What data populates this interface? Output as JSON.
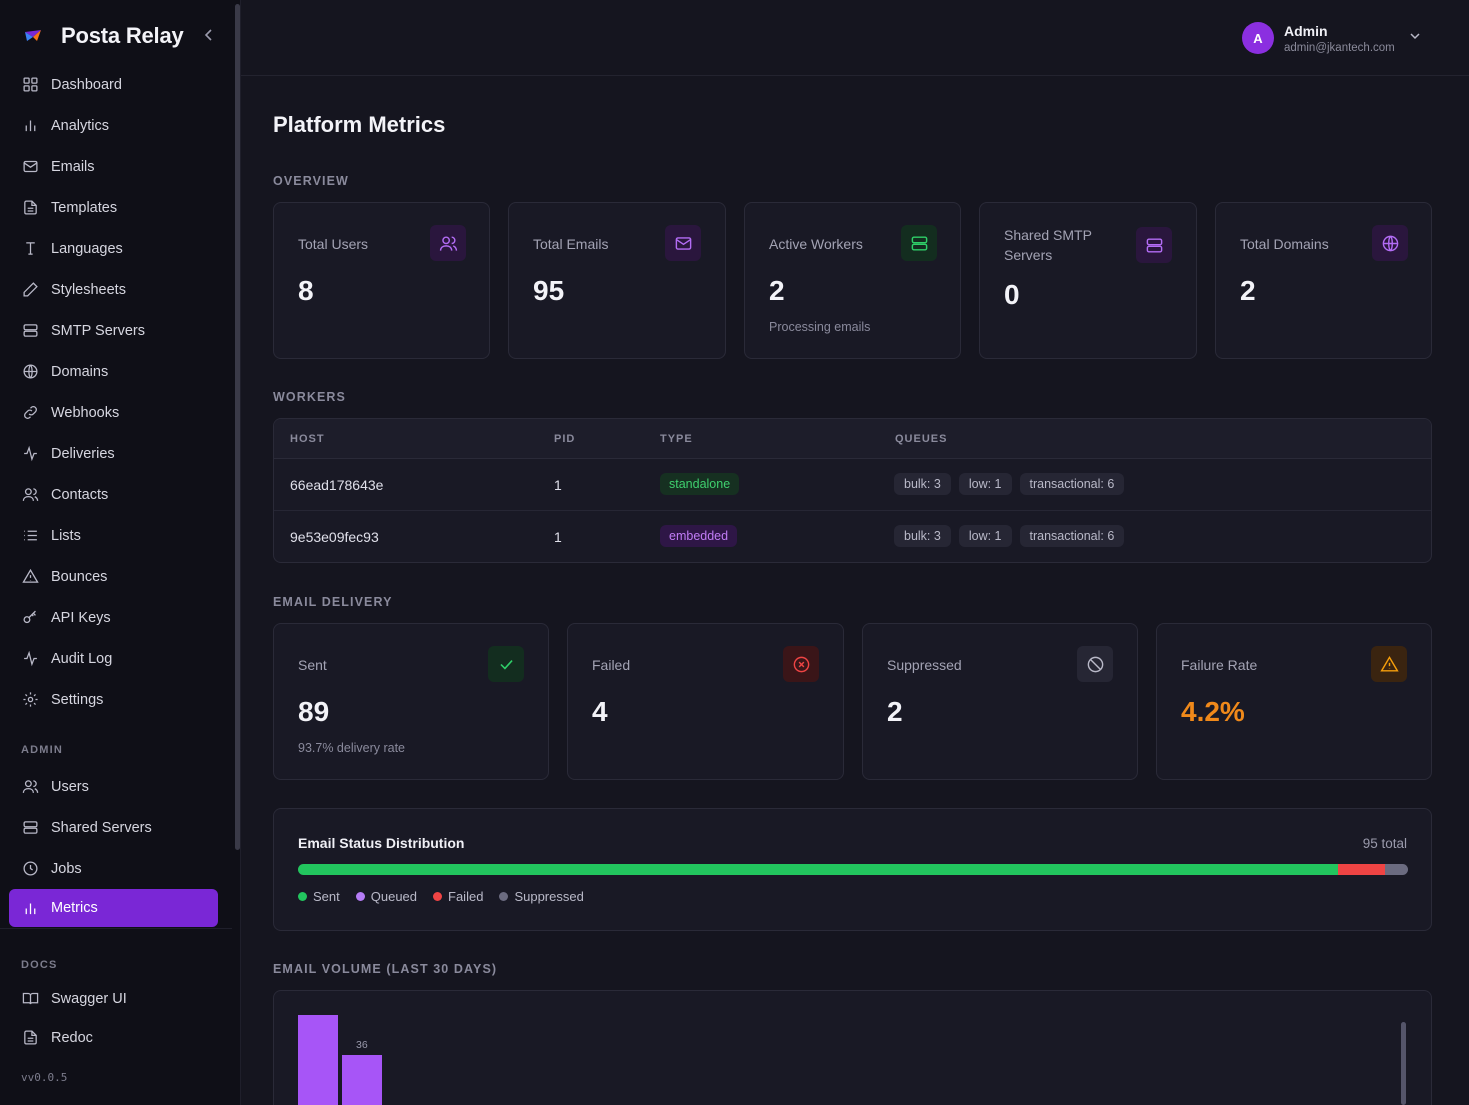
{
  "brand": {
    "title": "Posta Relay"
  },
  "sidebar": {
    "items": [
      {
        "label": "Dashboard",
        "icon": "grid-icon"
      },
      {
        "label": "Analytics",
        "icon": "bar-chart-icon"
      },
      {
        "label": "Emails",
        "icon": "mail-icon"
      },
      {
        "label": "Templates",
        "icon": "file-icon"
      },
      {
        "label": "Languages",
        "icon": "type-icon"
      },
      {
        "label": "Stylesheets",
        "icon": "pencil-icon"
      },
      {
        "label": "SMTP Servers",
        "icon": "server-icon"
      },
      {
        "label": "Domains",
        "icon": "globe-icon"
      },
      {
        "label": "Webhooks",
        "icon": "link-icon"
      },
      {
        "label": "Deliveries",
        "icon": "activity-icon"
      },
      {
        "label": "Contacts",
        "icon": "users-icon"
      },
      {
        "label": "Lists",
        "icon": "list-icon"
      },
      {
        "label": "Bounces",
        "icon": "alert-triangle-icon"
      },
      {
        "label": "API Keys",
        "icon": "key-icon"
      },
      {
        "label": "Audit Log",
        "icon": "activity-icon"
      },
      {
        "label": "Settings",
        "icon": "gear-icon"
      }
    ],
    "admin_label": "ADMIN",
    "admin_items": [
      {
        "label": "Users",
        "icon": "users-icon"
      },
      {
        "label": "Shared Servers",
        "icon": "server-icon"
      },
      {
        "label": "Jobs",
        "icon": "clock-icon"
      },
      {
        "label": "Metrics",
        "icon": "bar-chart-icon",
        "active": true
      }
    ],
    "docs_label": "DOCS",
    "docs_items": [
      {
        "label": "Swagger UI",
        "icon": "book-icon"
      },
      {
        "label": "Redoc",
        "icon": "file-icon"
      }
    ],
    "version": "vv0.0.5"
  },
  "user": {
    "initial": "A",
    "name": "Admin",
    "email": "admin@jkantech.com"
  },
  "page": {
    "title": "Platform Metrics"
  },
  "overview": {
    "label": "OVERVIEW",
    "cards": [
      {
        "label": "Total Users",
        "value": "8",
        "sub": ""
      },
      {
        "label": "Total Emails",
        "value": "95",
        "sub": ""
      },
      {
        "label": "Active Workers",
        "value": "2",
        "sub": "Processing emails"
      },
      {
        "label": "Shared SMTP Servers",
        "value": "0",
        "sub": ""
      },
      {
        "label": "Total Domains",
        "value": "2",
        "sub": ""
      }
    ]
  },
  "workers": {
    "label": "WORKERS",
    "columns": [
      "HOST",
      "PID",
      "TYPE",
      "QUEUES"
    ],
    "rows": [
      {
        "host": "66ead178643e",
        "pid": "1",
        "type": "standalone",
        "queues": [
          "bulk: 3",
          "low: 1",
          "transactional: 6"
        ]
      },
      {
        "host": "9e53e09fec93",
        "pid": "1",
        "type": "embedded",
        "queues": [
          "bulk: 3",
          "low: 1",
          "transactional: 6"
        ]
      }
    ]
  },
  "delivery": {
    "label": "EMAIL DELIVERY",
    "cards": [
      {
        "label": "Sent",
        "value": "89",
        "sub": "93.7% delivery rate"
      },
      {
        "label": "Failed",
        "value": "4",
        "sub": ""
      },
      {
        "label": "Suppressed",
        "value": "2",
        "sub": ""
      },
      {
        "label": "Failure Rate",
        "value": "4.2%",
        "sub": ""
      }
    ]
  },
  "distribution": {
    "title": "Email Status Distribution",
    "total": "95 total",
    "segments": [
      {
        "name": "Sent",
        "count": 89,
        "color": "#22c55e"
      },
      {
        "name": "Queued",
        "count": 0,
        "color": "#b57cf6"
      },
      {
        "name": "Failed",
        "count": 4,
        "color": "#ef4444"
      },
      {
        "name": "Suppressed",
        "count": 2,
        "color": "#6b6b80"
      }
    ]
  },
  "volume": {
    "label": "EMAIL VOLUME (LAST 30 DAYS)",
    "bar_labels": [
      "",
      "36"
    ]
  },
  "colors": {
    "accent": "#7a27d6",
    "success": "#22c55e",
    "danger": "#ef4444",
    "warning": "#f59e0b"
  }
}
